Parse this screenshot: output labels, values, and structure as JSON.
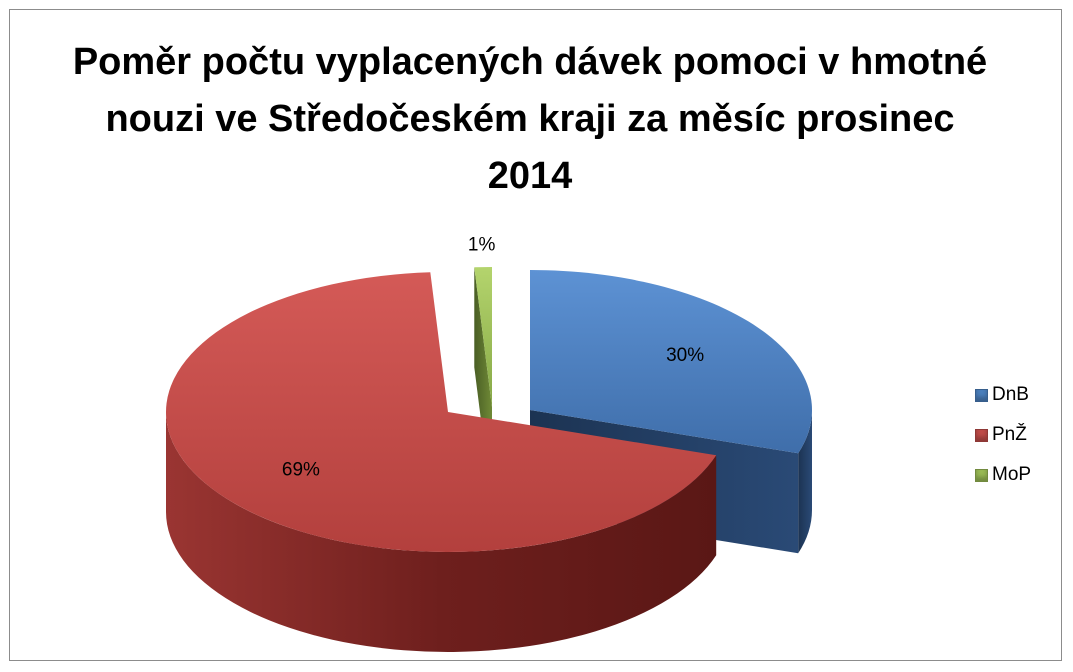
{
  "chart_data": {
    "type": "pie",
    "title": "Poměr počtu vyplacených dávek pomoci v hmotné nouzi ve Středočeském kraji za měsíc prosinec 2014",
    "categories": [
      "DnB",
      "PnŽ",
      "MoP"
    ],
    "values": [
      30,
      69,
      1
    ],
    "data_labels": [
      "30%",
      "69%",
      "1%"
    ],
    "colors": [
      "#4a7ebb",
      "#be4b48",
      "#98b954"
    ],
    "exploded": true,
    "style": "3d",
    "legend_position": "right"
  }
}
